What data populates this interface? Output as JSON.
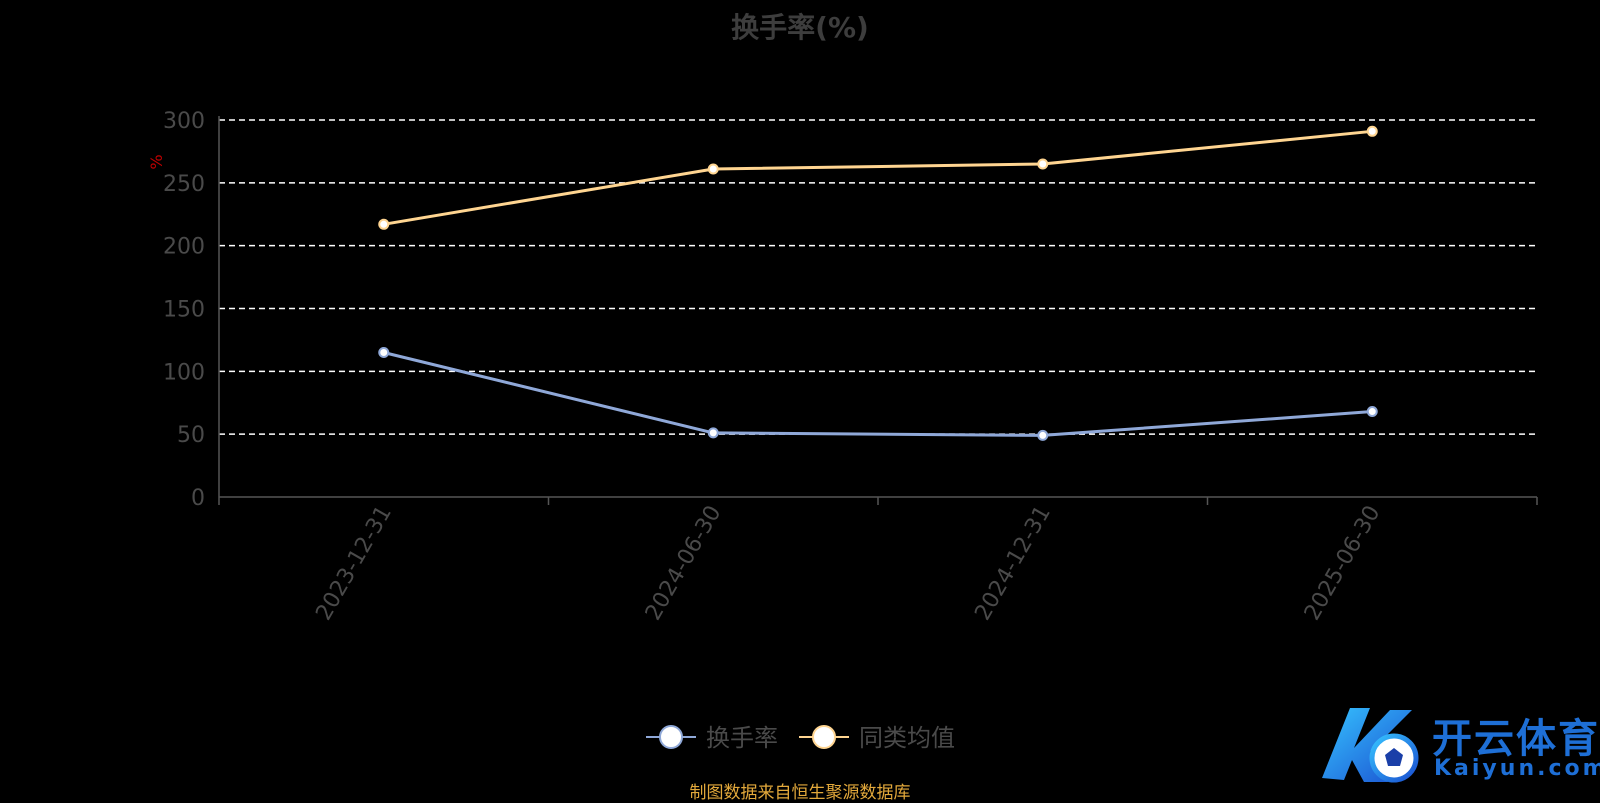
{
  "chart_data": {
    "type": "line",
    "title": "换手率(%)",
    "ylabel": "%",
    "xlabel": "",
    "categories": [
      "2023-12-31",
      "2024-06-30",
      "2024-12-31",
      "2025-06-30"
    ],
    "ylim": [
      0,
      300
    ],
    "yticks": [
      0,
      50,
      100,
      150,
      200,
      250,
      300
    ],
    "grid": true,
    "legend_position": "bottom-center",
    "series": [
      {
        "name": "换手率",
        "values": [
          115,
          51,
          49,
          68
        ],
        "color": "#8fa8d8"
      },
      {
        "name": "同类均值",
        "values": [
          217,
          261,
          265,
          291
        ],
        "color": "#ffd591"
      }
    ]
  },
  "footer": {
    "source": "制图数据来自恒生聚源数据库"
  },
  "watermark": {
    "brand_cn": "开云体育",
    "brand_en": "Kaiyun.com"
  },
  "colors": {
    "background": "#000000",
    "axis": "#555555",
    "grid": "#ffffff",
    "tick_text": "#4a4a4a"
  }
}
